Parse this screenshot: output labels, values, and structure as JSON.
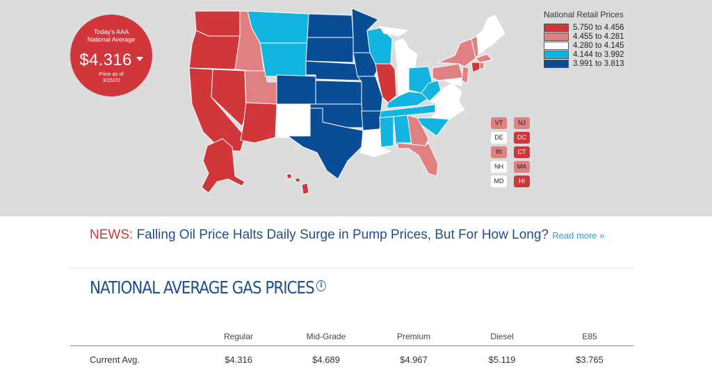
{
  "badge": {
    "label_line1": "Today's AAA",
    "label_line2": "National Average",
    "price": "$4.316",
    "price_as_of_line1": "Price as of",
    "price_as_of_line2": "3/15/22"
  },
  "legend": {
    "title": "National Retail Prices",
    "items": [
      {
        "range": "5.750 to 4.456",
        "color": "#d1363b"
      },
      {
        "range": "4.455 to 4.281",
        "color": "#e08080"
      },
      {
        "range": "4.280 to 4.145",
        "color": "#ffffff"
      },
      {
        "range": "4.144 to 3.992",
        "color": "#12b5e0"
      },
      {
        "range": "3.991 to 3.813",
        "color": "#0a4d97"
      }
    ]
  },
  "small_states": [
    {
      "abbr": "VT",
      "color": "#e08080"
    },
    {
      "abbr": "NJ",
      "color": "#e08080"
    },
    {
      "abbr": "DE",
      "color": "#ffffff"
    },
    {
      "abbr": "DC",
      "color": "#d1363b"
    },
    {
      "abbr": "RI",
      "color": "#e08080"
    },
    {
      "abbr": "CT",
      "color": "#d1363b"
    },
    {
      "abbr": "NH",
      "color": "#ffffff"
    },
    {
      "abbr": "MA",
      "color": "#e08080"
    },
    {
      "abbr": "MD",
      "color": "#ffffff"
    },
    {
      "abbr": "HI",
      "color": "#d1363b"
    }
  ],
  "news": {
    "tag": "NEWS:",
    "headline": "Falling Oil Price Halts Daily Surge in Pump Prices, But For How Long?",
    "read_more": "Read more »"
  },
  "section": {
    "title": "NATIONAL AVERAGE GAS PRICES",
    "info_icon": "info-icon"
  },
  "table": {
    "columns": [
      "Regular",
      "Mid-Grade",
      "Premium",
      "Diesel",
      "E85"
    ],
    "rows": [
      {
        "label": "Current Avg.",
        "values": [
          "$4.316",
          "$4.689",
          "$4.967",
          "$5.119",
          "$3.765"
        ]
      }
    ]
  }
}
